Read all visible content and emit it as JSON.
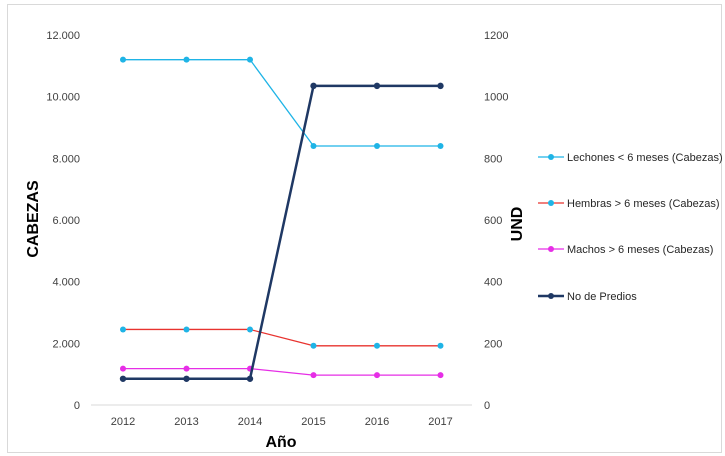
{
  "chart_data": {
    "type": "line",
    "categories": [
      "2012",
      "2013",
      "2014",
      "2015",
      "2016",
      "2017"
    ],
    "xlabel": "Año",
    "ylabel_left": "CABEZAS",
    "ylabel_right": "UND",
    "ylim_left": [
      0,
      12000
    ],
    "ylim_right": [
      0,
      1200
    ],
    "yticks_left": [
      "0",
      "2.000",
      "4.000",
      "6.000",
      "8.000",
      "10.000",
      "12.000"
    ],
    "yticks_right": [
      "0",
      "200",
      "400",
      "600",
      "800",
      "1000",
      "1200"
    ],
    "grid": false,
    "legend_position": "right",
    "series": [
      {
        "name": "Lechones < 6 meses (Cabezas)",
        "axis": "left",
        "color": "#1fb4e6",
        "values": [
          11200,
          11200,
          11200,
          8400,
          8400,
          8400
        ]
      },
      {
        "name": "Hembras > 6 meses (Cabezas)",
        "axis": "left",
        "color": "#e8332f",
        "marker_color": "#1fb4e6",
        "values": [
          2450,
          2450,
          2450,
          1920,
          1920,
          1920
        ]
      },
      {
        "name": "Machos > 6 meses (Cabezas)",
        "axis": "left",
        "color": "#e62ee6",
        "values": [
          1180,
          1180,
          1180,
          970,
          970,
          970
        ]
      },
      {
        "name": "No de Predios",
        "axis": "right",
        "color": "#1f3864",
        "values": [
          85,
          85,
          85,
          1035,
          1035,
          1035
        ]
      }
    ]
  }
}
